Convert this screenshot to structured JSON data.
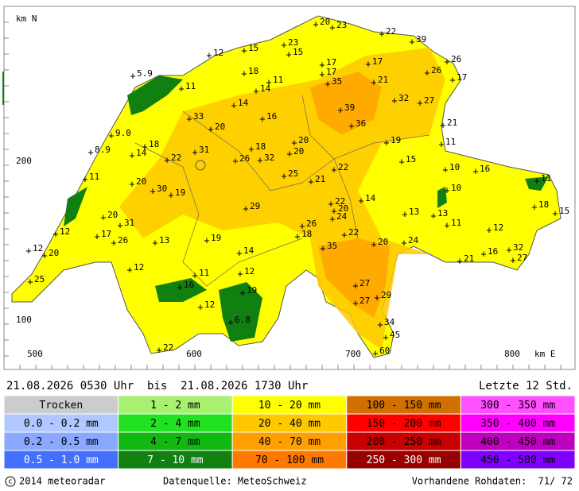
{
  "map": {
    "axis_y_label": "km N",
    "axis_x_label": "km E",
    "y_ticks": [
      "200",
      "100"
    ],
    "x_ticks": [
      "500",
      "600",
      "700",
      "800"
    ],
    "stations": [
      "20",
      "23",
      "22",
      "39",
      "12",
      "15",
      "23",
      "15",
      "26",
      "17",
      "17",
      "5.9",
      "18",
      "17",
      "26",
      "17",
      "11",
      "11",
      "14",
      "35",
      "21",
      "32",
      "27",
      "14",
      "39",
      "33",
      "16",
      "36",
      "21",
      "20",
      "9.0",
      "18",
      "18",
      "20",
      "19",
      "11",
      "8.9",
      "14",
      "31",
      "20",
      "22",
      "26",
      "32",
      "15",
      "10",
      "16",
      "11",
      "25",
      "21",
      "22",
      "20",
      "30",
      "19",
      "10",
      "11",
      "14",
      "22",
      "20",
      "29",
      "24",
      "13",
      "13",
      "18",
      "15",
      "20",
      "31",
      "26",
      "11",
      "12",
      "17",
      "18",
      "22",
      "12",
      "13",
      "19",
      "26",
      "35",
      "20",
      "24",
      "12",
      "20",
      "14",
      "16",
      "32",
      "27",
      "21",
      "12",
      "11",
      "12",
      "25",
      "16",
      "19",
      "27",
      "27",
      "29",
      "12",
      "6.8",
      "34",
      "45",
      "22",
      "60"
    ]
  },
  "period": "21.08.2026 0530 Uhr  bis  21.08.2026 1730 Uhr",
  "window": "Letzte 12 Std.",
  "legend": {
    "rows": [
      [
        "Trocken",
        "1 - 2 mm",
        "10 - 20 mm",
        "100 - 150 mm",
        "300 - 350 mm"
      ],
      [
        "0.0 - 0.2 mm",
        "2 - 4 mm",
        "20 - 40 mm",
        "150 - 200 mm",
        "350 - 400 mm"
      ],
      [
        "0.2 - 0.5 mm",
        "4 - 7 mm",
        "40 - 70 mm",
        "200 - 250 mm",
        "400 - 450 mm"
      ],
      [
        "0.5 - 1.0 mm",
        "7 - 10 mm",
        "70 - 100 mm",
        "250 - 300 mm",
        "450 - 500 mm"
      ]
    ]
  },
  "footer": {
    "copyright": "2014 meteoradar",
    "source": "Datenquelle: MeteoSchweiz",
    "raw_data": "Vorhandene Rohdaten:  71/ 72"
  }
}
